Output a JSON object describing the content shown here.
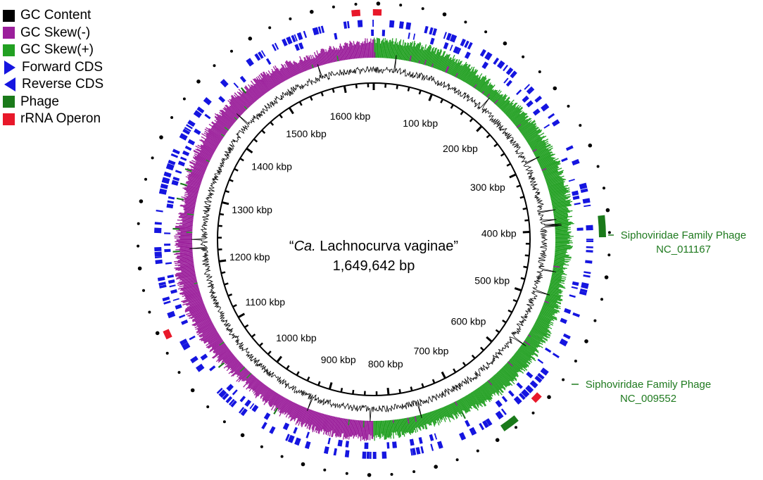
{
  "legend": [
    {
      "label": "GC Content",
      "color": "#000000",
      "shape": "square"
    },
    {
      "label": "GC Skew(-)",
      "color": "#9b1f9b",
      "shape": "square"
    },
    {
      "label": "GC Skew(+)",
      "color": "#22a022",
      "shape": "square"
    },
    {
      "label": "Forward CDS",
      "color": "#1515e0",
      "shape": "triangle-right"
    },
    {
      "label": "Reverse CDS",
      "color": "#1515e0",
      "shape": "triangle-left"
    },
    {
      "label": "Phage",
      "color": "#1a7a1a",
      "shape": "square"
    },
    {
      "label": "rRNA Operon",
      "color": "#e8182a",
      "shape": "square"
    }
  ],
  "center": {
    "quote_open": "“",
    "italic_part": "Ca.",
    "name_rest": " Lachnocurva vaginae”",
    "size_label": "1,649,642 bp"
  },
  "genome": {
    "length_bp": 1649642,
    "tick_labels": [
      "100 kbp",
      "200 kbp",
      "300 kbp",
      "400 kbp",
      "500 kbp",
      "600 kbp",
      "700 kbp",
      "800 kbp",
      "900 kbp",
      "1000 kbp",
      "1100 kbp",
      "1200 kbp",
      "1300 kbp",
      "1400 kbp",
      "1500 kbp",
      "1600 kbp"
    ],
    "tick_positions_kbp": [
      100,
      200,
      300,
      400,
      500,
      600,
      700,
      800,
      900,
      1000,
      1100,
      1200,
      1300,
      1400,
      1500,
      1600
    ]
  },
  "features": {
    "rrna_operons_kbp": [
      4,
      1629,
      615,
      1124
    ],
    "phage_regions": [
      {
        "start_kbp": 385,
        "end_kbp": 410,
        "name_line1": "Siphoviridae Family Phage",
        "name_line2": "NC_011167"
      },
      {
        "start_kbp": 648,
        "end_kbp": 668,
        "name_line1": "Siphoviridae Family Phage",
        "name_line2": "NC_009552"
      }
    ]
  },
  "colors": {
    "gc_content": "#000000",
    "skew_neg": "#9b1f9b",
    "skew_pos": "#22a022",
    "cds": "#1515e0",
    "phage": "#1a7a1a",
    "rrna": "#e8182a",
    "annotation_text": "#1f7a1f"
  }
}
